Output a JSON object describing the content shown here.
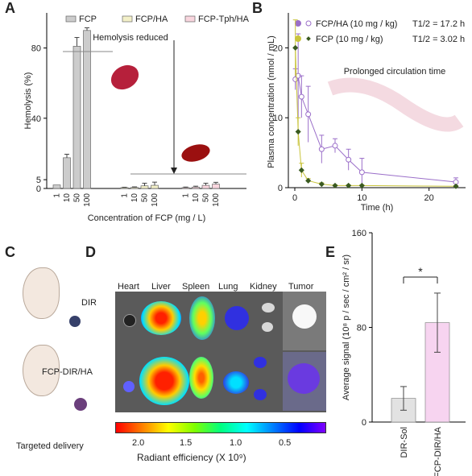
{
  "panels": {
    "A": "A",
    "B": "B",
    "C": "C",
    "D": "D",
    "E": "E"
  },
  "chart_data": [
    {
      "type": "bar",
      "panel": "A",
      "ylabel": "Hemolysis (%)",
      "xlabel": "Concentration of FCP (mg / L)",
      "yticks": [
        0,
        5,
        40,
        80
      ],
      "ylim": [
        0,
        100
      ],
      "legend": "top",
      "annotation": "Hemolysis reduced",
      "categories": [
        "1",
        "10",
        "50",
        "100"
      ],
      "series": [
        {
          "name": "FCP",
          "values": [
            2,
            17.5,
            81,
            90
          ],
          "errors": [
            0,
            2,
            5,
            1.5
          ],
          "color": "#cccccc"
        },
        {
          "name": "FCP/HA",
          "values": [
            0.5,
            0.6,
            1.5,
            1.8
          ],
          "errors": [
            0.2,
            0.3,
            1.5,
            1.8
          ],
          "color": "#f3f0c8"
        },
        {
          "name": "FCP-Tph/HA",
          "values": [
            0.5,
            0.8,
            1.8,
            2.5
          ],
          "errors": [
            0.3,
            0.5,
            1.2,
            1.0
          ],
          "color": "#f9d6de"
        }
      ]
    },
    {
      "type": "line",
      "panel": "B",
      "ylabel": "Plasma concentration (nmol / mL)",
      "xlabel": "Time (h)",
      "ylim": [
        0,
        25
      ],
      "xlim": [
        0,
        24
      ],
      "yticks": [
        0,
        10,
        20
      ],
      "xticks": [
        0,
        10,
        20
      ],
      "annotation": "Prolonged circulation time",
      "series": [
        {
          "name": "FCP/HA (10 mg / kg)",
          "half_life": "T1/2 = 17.2 h",
          "color": "#9b6fc9",
          "x": [
            0.083,
            0.5,
            1,
            2,
            4,
            6,
            8,
            10,
            24
          ],
          "y": [
            15.5,
            16,
            13,
            10.5,
            5.5,
            6,
            4,
            2.2,
            0.8
          ],
          "err": [
            1.5,
            6,
            3,
            4,
            2,
            1,
            1.5,
            2,
            0.6
          ]
        },
        {
          "name": "FCP (10 mg / kg)",
          "half_life": "T1/2 = 3.02 h",
          "color": "#c9c43c",
          "x": [
            0.083,
            0.5,
            1,
            2,
            4,
            6,
            8,
            10,
            24
          ],
          "y": [
            20,
            8,
            2.5,
            1,
            0.5,
            0.3,
            0.3,
            0.3,
            0.2
          ],
          "err": [
            4,
            2,
            1,
            0.3,
            0.2,
            0.1,
            0.1,
            0.1,
            0.1
          ]
        }
      ]
    },
    {
      "type": "bar",
      "panel": "E",
      "ylabel": "Average signal (10⁸ p / sec / cm² / sr)",
      "categories": [
        "DIR-Sol",
        "FCP-DIR/HA"
      ],
      "values": [
        20,
        84
      ],
      "errors": [
        10,
        25
      ],
      "colors": [
        "#e2e2e2",
        "#f7d4f0"
      ],
      "ylim": [
        0,
        160
      ],
      "yticks": [
        0,
        80,
        160
      ],
      "significance": "*"
    }
  ],
  "panel_c": {
    "label1": "DIR",
    "label2": "FCP-DIR/HA",
    "caption": "Targeted delivery"
  },
  "panel_d": {
    "organs": [
      "Heart",
      "Liver",
      "Spleen",
      "Lung",
      "Kidney",
      "Tumor"
    ],
    "colorbar_ticks": [
      "2.0",
      "1.5",
      "1.0",
      "0.5"
    ],
    "colorbar_label": "Radiant efficiency (X 10⁹)"
  }
}
